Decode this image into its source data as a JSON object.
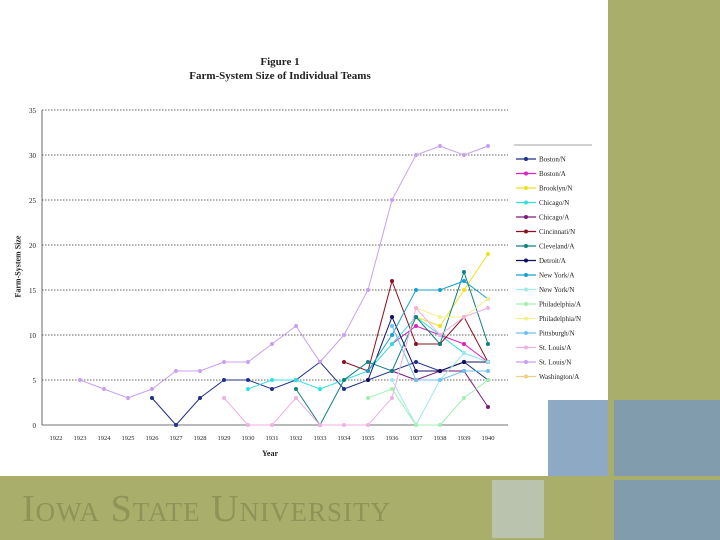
{
  "footer": {
    "brand": "Iowa State University"
  },
  "colors": {
    "banner": "#a9ae6b",
    "banner_text": "#8e9457",
    "tile": "#7a9ab8"
  },
  "chart_data": {
    "type": "line",
    "title": "Figure 1",
    "subtitle": "Farm-System Size of Individual Teams",
    "xlabel": "Year",
    "ylabel": "Farm-System Size",
    "categories": [
      "1922",
      "1923",
      "1924",
      "1925",
      "1926",
      "1927",
      "1928",
      "1929",
      "1930",
      "1931",
      "1932",
      "1933",
      "1934",
      "1935",
      "1936",
      "1937",
      "1938",
      "1939",
      "1940"
    ],
    "y_ticks": [
      "0",
      "5",
      "10",
      "15",
      "20",
      "25",
      "30",
      "35"
    ],
    "ylim": [
      0,
      35
    ],
    "grid": "horizontal dotted",
    "legend_position": "right",
    "series": [
      {
        "name": "Boston/N",
        "color": "#1f2f8a",
        "values": [
          null,
          null,
          null,
          null,
          3,
          0,
          3,
          5,
          5,
          4,
          5,
          7,
          4,
          5,
          6,
          7,
          6,
          7,
          5
        ]
      },
      {
        "name": "Boston/A",
        "color": "#e020c0",
        "values": [
          null,
          null,
          null,
          null,
          null,
          null,
          null,
          null,
          null,
          null,
          null,
          null,
          null,
          null,
          9,
          11,
          10,
          9,
          7
        ]
      },
      {
        "name": "Brooklyn/N",
        "color": "#f0e020",
        "values": [
          null,
          null,
          null,
          null,
          null,
          null,
          null,
          null,
          null,
          null,
          null,
          null,
          null,
          null,
          null,
          12,
          11,
          15,
          19
        ]
      },
      {
        "name": "Chicago/N",
        "color": "#30e0e0",
        "values": [
          null,
          null,
          null,
          null,
          null,
          null,
          null,
          null,
          4,
          5,
          5,
          4,
          5,
          6,
          9,
          12,
          10,
          8,
          7
        ]
      },
      {
        "name": "Chicago/A",
        "color": "#7a1a7a",
        "values": [
          null,
          null,
          null,
          null,
          null,
          null,
          null,
          null,
          null,
          null,
          null,
          null,
          null,
          null,
          6,
          5,
          6,
          6,
          2
        ]
      },
      {
        "name": "Cincinnati/N",
        "color": "#8b1020",
        "values": [
          null,
          null,
          null,
          null,
          null,
          null,
          null,
          null,
          null,
          null,
          null,
          null,
          7,
          6,
          16,
          9,
          9,
          12,
          7
        ]
      },
      {
        "name": "Cleveland/A",
        "color": "#108080",
        "values": [
          null,
          null,
          null,
          null,
          null,
          null,
          null,
          null,
          null,
          null,
          4,
          0,
          5,
          7,
          6,
          12,
          9,
          17,
          9
        ]
      },
      {
        "name": "Detroit/A",
        "color": "#101060",
        "values": [
          null,
          null,
          null,
          null,
          null,
          null,
          null,
          null,
          null,
          null,
          null,
          null,
          null,
          5,
          12,
          6,
          6,
          7,
          7
        ]
      },
      {
        "name": "New York/A",
        "color": "#1aa0d0",
        "values": [
          null,
          null,
          null,
          null,
          null,
          null,
          null,
          null,
          null,
          null,
          null,
          null,
          null,
          6,
          10,
          15,
          15,
          16,
          14
        ]
      },
      {
        "name": "New York/N",
        "color": "#a0e8f0",
        "values": [
          null,
          null,
          null,
          null,
          null,
          null,
          null,
          null,
          null,
          null,
          null,
          null,
          null,
          null,
          5,
          0,
          5,
          8,
          7
        ]
      },
      {
        "name": "Philadelphia/A",
        "color": "#a0f0b0",
        "values": [
          null,
          null,
          null,
          null,
          null,
          null,
          null,
          null,
          null,
          null,
          null,
          null,
          null,
          3,
          4,
          0,
          0,
          3,
          5
        ]
      },
      {
        "name": "Philadelphia/N",
        "color": "#f4f090",
        "values": [
          null,
          null,
          null,
          null,
          null,
          null,
          null,
          null,
          null,
          null,
          null,
          null,
          null,
          null,
          null,
          13,
          12,
          12,
          14
        ]
      },
      {
        "name": "Pittsburgh/N",
        "color": "#70c0f0",
        "values": [
          null,
          null,
          null,
          null,
          null,
          null,
          null,
          null,
          null,
          null,
          null,
          null,
          null,
          null,
          11,
          5,
          5,
          6,
          6
        ]
      },
      {
        "name": "St. Louis/A",
        "color": "#f0b0e0",
        "values": [
          null,
          null,
          null,
          null,
          null,
          null,
          null,
          3,
          0,
          0,
          3,
          0,
          0,
          0,
          3,
          13,
          10,
          12,
          13
        ]
      },
      {
        "name": "St. Louis/N",
        "color": "#c8a0f0",
        "values": [
          null,
          5,
          4,
          3,
          4,
          6,
          6,
          7,
          7,
          9,
          11,
          7,
          10,
          15,
          25,
          30,
          31,
          30,
          31
        ]
      },
      {
        "name": "Washington/A",
        "color": "#f0d080",
        "values": [
          null,
          null,
          null,
          null,
          null,
          null,
          null,
          null,
          null,
          null,
          null,
          null,
          null,
          null,
          null,
          null,
          null,
          null,
          null
        ]
      }
    ]
  }
}
